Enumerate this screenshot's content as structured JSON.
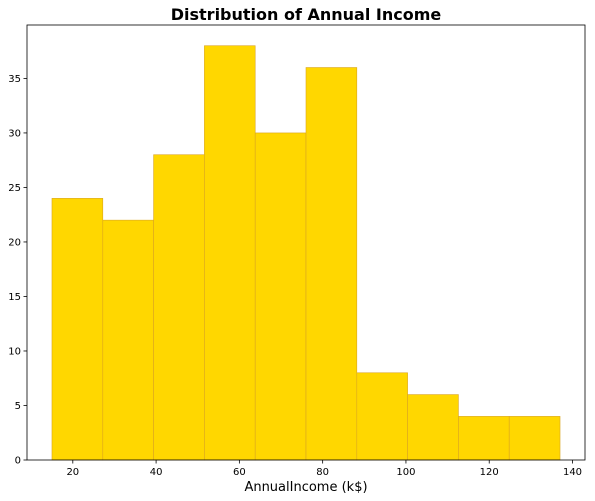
{
  "chart_data": {
    "type": "bar",
    "title": "Distribution of Annual Income",
    "xlabel": "AnnualIncome (k$)",
    "ylabel": "",
    "bin_edges": [
      15,
      27.2,
      39.4,
      51.6,
      63.8,
      76,
      88.2,
      100.4,
      112.6,
      124.8,
      137
    ],
    "values": [
      24,
      22,
      28,
      38,
      30,
      36,
      8,
      6,
      4,
      4
    ],
    "xlim": [
      9,
      143
    ],
    "ylim": [
      0,
      39.9
    ],
    "xticks": [
      20,
      40,
      60,
      80,
      100,
      120,
      140
    ],
    "yticks": [
      0,
      5,
      10,
      15,
      20,
      25,
      30,
      35
    ],
    "grid": false,
    "bar_color": "#FFD700",
    "edge_color": "#DAA520"
  }
}
